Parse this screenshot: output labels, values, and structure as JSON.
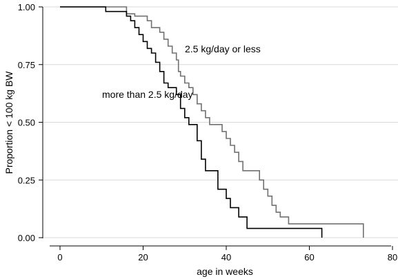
{
  "chart_data": {
    "type": "line",
    "step": true,
    "xlabel": "age in weeks",
    "ylabel": "Proportion < 100 kg BW",
    "xlim": [
      0,
      80
    ],
    "ylim": [
      0,
      1
    ],
    "xticks": [
      0,
      20,
      40,
      60,
      80
    ],
    "yticks": [
      0,
      0.25,
      0.5,
      0.75,
      1.0
    ],
    "ytick_labels": [
      "0.00",
      "0.25",
      "0.50",
      "0.75",
      "1.00"
    ],
    "grid": "horizontal",
    "annotations": [
      {
        "text": "2.5 kg/day or less",
        "series": 0
      },
      {
        "text": "more than 2.5 kg/day",
        "series": 1
      }
    ],
    "series": [
      {
        "color": "#707070",
        "points": [
          [
            0,
            1.0
          ],
          [
            16,
            1.0
          ],
          [
            16,
            0.97
          ],
          [
            18,
            0.97
          ],
          [
            18,
            0.96
          ],
          [
            21,
            0.96
          ],
          [
            21,
            0.94
          ],
          [
            22,
            0.94
          ],
          [
            22,
            0.91
          ],
          [
            24,
            0.91
          ],
          [
            24,
            0.89
          ],
          [
            25,
            0.89
          ],
          [
            25,
            0.86
          ],
          [
            26,
            0.86
          ],
          [
            26,
            0.83
          ],
          [
            27,
            0.83
          ],
          [
            27,
            0.8
          ],
          [
            28,
            0.8
          ],
          [
            28,
            0.77
          ],
          [
            28.5,
            0.77
          ],
          [
            28.5,
            0.72
          ],
          [
            29,
            0.72
          ],
          [
            29,
            0.7
          ],
          [
            30,
            0.7
          ],
          [
            30,
            0.67
          ],
          [
            31,
            0.67
          ],
          [
            31,
            0.65
          ],
          [
            32,
            0.65
          ],
          [
            32,
            0.62
          ],
          [
            33,
            0.62
          ],
          [
            33,
            0.58
          ],
          [
            34,
            0.58
          ],
          [
            34,
            0.55
          ],
          [
            35,
            0.55
          ],
          [
            35,
            0.52
          ],
          [
            36,
            0.52
          ],
          [
            36,
            0.49
          ],
          [
            39,
            0.49
          ],
          [
            39,
            0.46
          ],
          [
            40,
            0.46
          ],
          [
            40,
            0.43
          ],
          [
            41,
            0.43
          ],
          [
            41,
            0.4
          ],
          [
            42,
            0.4
          ],
          [
            42,
            0.37
          ],
          [
            43,
            0.37
          ],
          [
            43,
            0.33
          ],
          [
            44,
            0.33
          ],
          [
            44,
            0.29
          ],
          [
            48,
            0.29
          ],
          [
            48,
            0.25
          ],
          [
            49,
            0.25
          ],
          [
            49,
            0.21
          ],
          [
            50,
            0.21
          ],
          [
            50,
            0.18
          ],
          [
            51,
            0.18
          ],
          [
            51,
            0.14
          ],
          [
            52,
            0.14
          ],
          [
            52,
            0.11
          ],
          [
            53,
            0.11
          ],
          [
            53,
            0.09
          ],
          [
            55,
            0.09
          ],
          [
            55,
            0.06
          ],
          [
            73,
            0.06
          ],
          [
            73,
            0.0
          ]
        ]
      },
      {
        "color": "#000000",
        "points": [
          [
            0,
            1.0
          ],
          [
            11,
            1.0
          ],
          [
            11,
            0.98
          ],
          [
            16,
            0.98
          ],
          [
            16,
            0.96
          ],
          [
            17,
            0.96
          ],
          [
            17,
            0.94
          ],
          [
            18,
            0.94
          ],
          [
            18,
            0.91
          ],
          [
            19,
            0.91
          ],
          [
            19,
            0.88
          ],
          [
            20,
            0.88
          ],
          [
            20,
            0.85
          ],
          [
            21,
            0.85
          ],
          [
            21,
            0.82
          ],
          [
            22,
            0.82
          ],
          [
            22,
            0.8
          ],
          [
            23,
            0.8
          ],
          [
            23,
            0.76
          ],
          [
            24,
            0.76
          ],
          [
            24,
            0.72
          ],
          [
            25,
            0.72
          ],
          [
            25,
            0.67
          ],
          [
            26,
            0.67
          ],
          [
            26,
            0.65
          ],
          [
            28,
            0.65
          ],
          [
            28,
            0.62
          ],
          [
            29,
            0.62
          ],
          [
            29,
            0.56
          ],
          [
            30,
            0.56
          ],
          [
            30,
            0.52
          ],
          [
            31,
            0.52
          ],
          [
            31,
            0.49
          ],
          [
            33,
            0.49
          ],
          [
            33,
            0.42
          ],
          [
            34,
            0.42
          ],
          [
            34,
            0.34
          ],
          [
            35,
            0.34
          ],
          [
            35,
            0.29
          ],
          [
            38,
            0.29
          ],
          [
            38,
            0.21
          ],
          [
            40,
            0.21
          ],
          [
            40,
            0.17
          ],
          [
            41,
            0.17
          ],
          [
            41,
            0.13
          ],
          [
            43,
            0.13
          ],
          [
            43,
            0.09
          ],
          [
            45,
            0.09
          ],
          [
            45,
            0.04
          ],
          [
            63,
            0.04
          ],
          [
            63,
            0.0
          ]
        ]
      }
    ]
  }
}
